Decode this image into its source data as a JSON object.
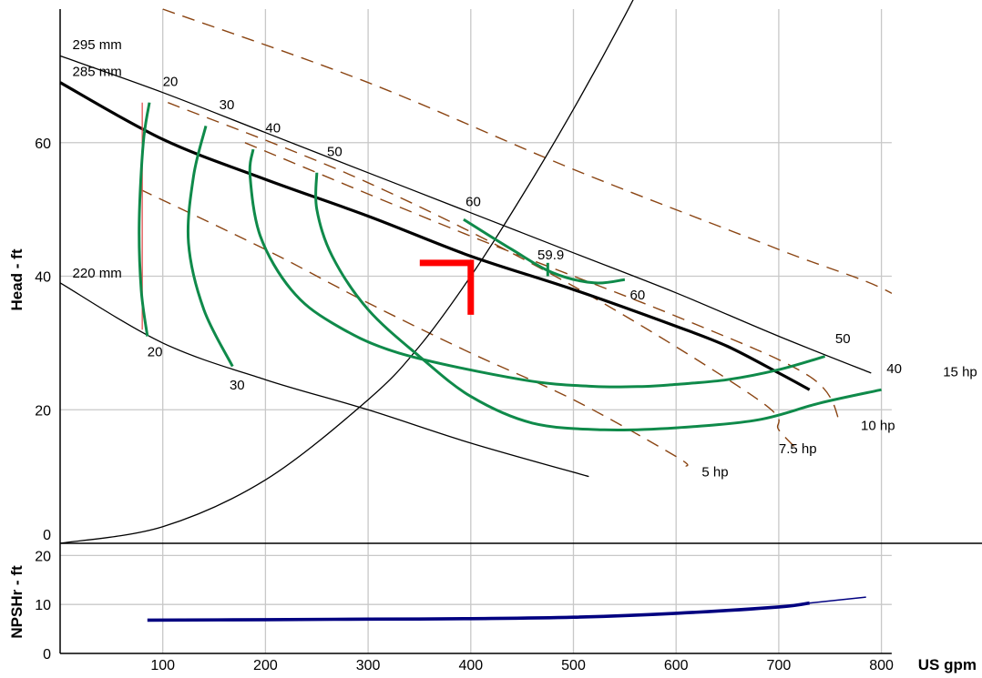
{
  "chart_data": {
    "type": "line",
    "colors": {
      "grid": "#c8c8c8",
      "impeller": "#000000",
      "efficiency": "#0f8a4a",
      "power": "#8b4513",
      "system": "#000000",
      "duty": "#ff0000",
      "npsh": "#000080",
      "min_flow": "#e05050"
    },
    "head_plot": {
      "ylabel": "Head - ft",
      "ylim": [
        0,
        80
      ],
      "yticks": [
        0,
        20,
        40,
        60
      ]
    },
    "npsh_plot": {
      "ylabel": "NPSHr - ft",
      "ylim": [
        0,
        21
      ],
      "yticks": [
        0,
        10,
        20
      ]
    },
    "x_axis": {
      "unit_label": "US gpm",
      "xlim": [
        0,
        810
      ],
      "xticks": [
        100,
        200,
        300,
        400,
        500,
        600,
        700,
        800
      ]
    },
    "impeller_curves": [
      {
        "label": "295 mm",
        "label_at": [
          12,
          74
        ],
        "x": [
          0,
          100,
          200,
          300,
          400,
          500,
          600,
          700,
          790
        ],
        "y": [
          73,
          67.5,
          61.5,
          55.5,
          49.5,
          43.5,
          37.5,
          31,
          25.5
        ]
      },
      {
        "label": "285 mm",
        "label_at": [
          12,
          70
        ],
        "bold": true,
        "x": [
          0,
          100,
          200,
          300,
          400,
          500,
          600,
          650,
          700,
          730
        ],
        "y": [
          69,
          60.5,
          54.5,
          49,
          43,
          38,
          32.5,
          29.5,
          25.5,
          23
        ]
      },
      {
        "label": "220 mm",
        "label_at": [
          12,
          39.8
        ],
        "x": [
          0,
          100,
          200,
          300,
          400,
          515
        ],
        "y": [
          39,
          30,
          24.5,
          20,
          15,
          10
        ]
      }
    ],
    "efficiency_curves": [
      {
        "x": [
          87,
          81,
          77,
          79,
          85
        ],
        "y": [
          66,
          60,
          48,
          38,
          31
        ]
      },
      {
        "x": [
          142,
          130,
          125,
          140,
          168
        ],
        "y": [
          62.5,
          55,
          45,
          35,
          26.5
        ]
      },
      {
        "x": [
          188,
          185,
          195,
          225,
          265,
          330,
          450,
          520,
          570,
          600,
          650,
          700,
          745
        ],
        "y": [
          59,
          55,
          46,
          38,
          33,
          28.5,
          24.5,
          23.5,
          23.5,
          23.8,
          24.5,
          26,
          28
        ]
      },
      {
        "x": [
          250,
          250,
          265,
          300,
          350,
          400,
          460,
          530,
          600,
          680,
          740,
          800
        ],
        "y": [
          55.5,
          50,
          43,
          35,
          28,
          22,
          18,
          17,
          17.3,
          18.5,
          21,
          23
        ]
      },
      {
        "x": [
          393,
          440,
          480,
          520,
          550
        ],
        "y": [
          48.5,
          44,
          40.5,
          39,
          39.5
        ]
      }
    ],
    "efficiency_labels": [
      {
        "text": "20",
        "at": [
          100,
          68.5
        ]
      },
      {
        "text": "30",
        "at": [
          155,
          65
        ]
      },
      {
        "text": "40",
        "at": [
          200,
          61.5
        ]
      },
      {
        "text": "50",
        "at": [
          260,
          58
        ]
      },
      {
        "text": "60",
        "at": [
          395,
          50.5
        ]
      },
      {
        "text": "59.9",
        "at": [
          465,
          42.5
        ]
      },
      {
        "text": "60",
        "at": [
          555,
          36.5
        ]
      },
      {
        "text": "50",
        "at": [
          755,
          30
        ]
      },
      {
        "text": "40",
        "at": [
          805,
          25.5
        ]
      },
      {
        "text": "20",
        "at": [
          85,
          28
        ]
      },
      {
        "text": "30",
        "at": [
          165,
          23
        ]
      }
    ],
    "min_flow_line": {
      "x": 80,
      "y": [
        66,
        32
      ]
    },
    "efficiency_60_tick": {
      "x": 475,
      "y": [
        42,
        40
      ]
    },
    "power_curves": [
      {
        "label": "5 hp",
        "label_at": [
          625,
          10
        ],
        "x": [
          78,
          200,
          300,
          400,
          500,
          600,
          610
        ],
        "y": [
          53,
          44,
          36,
          28.5,
          21.5,
          13,
          11.5
        ]
      },
      {
        "label": "7.5 hp",
        "label_at": [
          700,
          13.5
        ],
        "x": [
          105,
          300,
          500,
          680,
          700,
          715
        ],
        "y": [
          66,
          54,
          38.5,
          21.5,
          17,
          14.5
        ]
      },
      {
        "label": "10 hp",
        "label_at": [
          780,
          17
        ],
        "x": [
          180,
          400,
          600,
          730,
          760
        ],
        "y": [
          60,
          46,
          34,
          25,
          18
        ]
      },
      {
        "label": "15 hp",
        "label_at": [
          860,
          25
        ],
        "x": [
          100,
          300,
          500,
          700,
          820,
          860
        ],
        "y": [
          80,
          69,
          56,
          44,
          36.5,
          27
        ]
      }
    ],
    "system_curve": {
      "x": [
        0,
        100,
        200,
        300,
        350,
        400,
        450,
        500,
        550,
        600
      ],
      "y": [
        0,
        2.5,
        9.5,
        21.5,
        29.5,
        40,
        52,
        65,
        79,
        94
      ]
    },
    "duty_point": {
      "x": 400,
      "y": 42,
      "marker": "corner"
    },
    "npsh_curve": {
      "x": [
        85,
        200,
        300,
        400,
        500,
        600,
        700,
        730,
        785
      ],
      "y": [
        6.8,
        6.9,
        7.0,
        7.1,
        7.4,
        8.2,
        9.5,
        10.3,
        11.5
      ]
    }
  }
}
